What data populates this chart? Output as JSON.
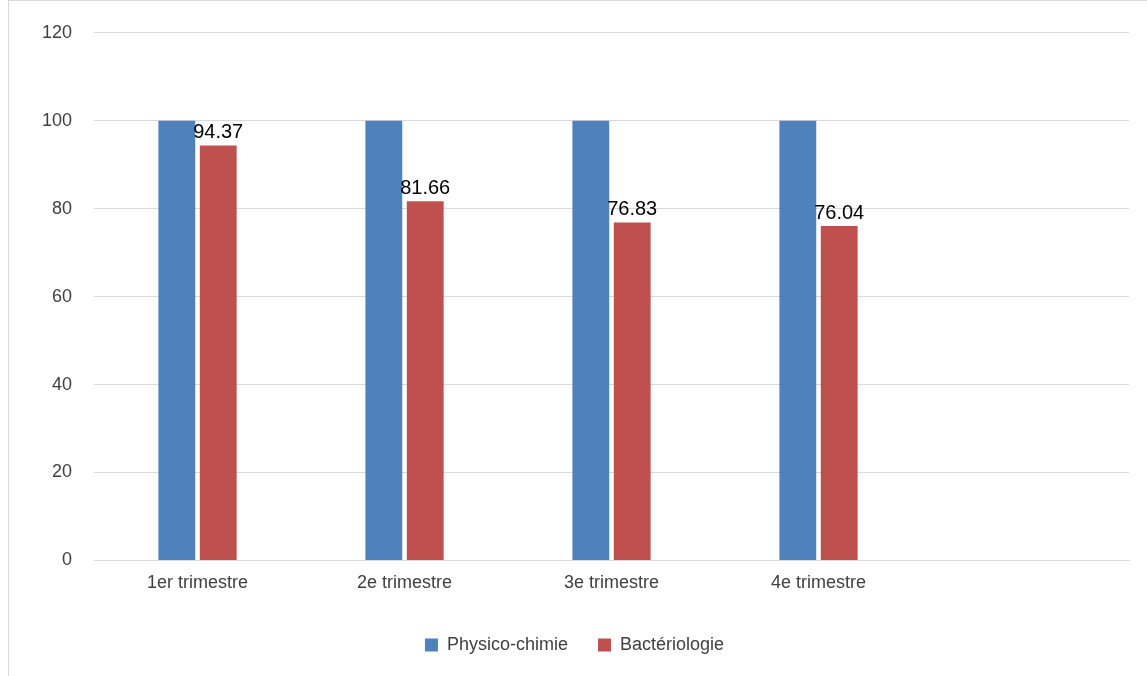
{
  "chart_data": {
    "type": "bar",
    "categories": [
      "1er trimestre",
      "2e trimestre",
      "3e trimestre",
      "4e trimestre",
      null
    ],
    "series": [
      {
        "name": "Physico-chimie",
        "color": "#4f81bd",
        "values": [
          100,
          100,
          100,
          100,
          null
        ]
      },
      {
        "name": "Bactériologie",
        "color": "#c0504d",
        "values": [
          94.37,
          81.66,
          76.83,
          76.04,
          null
        ],
        "value_labels": [
          "94.37",
          "81.66",
          "76.83",
          "76.04",
          null
        ]
      }
    ],
    "ylim": [
      0,
      120
    ],
    "yticks": [
      0,
      20,
      40,
      60,
      80,
      100,
      120
    ],
    "grid": "y",
    "legend": "bottom"
  }
}
